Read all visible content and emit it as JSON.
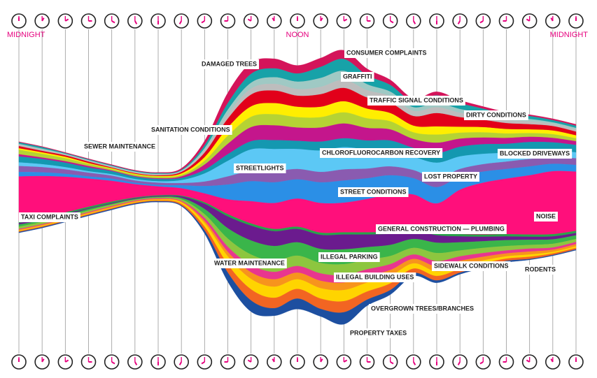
{
  "chart_data": {
    "type": "streamgraph",
    "categories": [
      "MIDNIGHT",
      null,
      null,
      null,
      null,
      null,
      null,
      null,
      null,
      null,
      null,
      null,
      "NOON",
      null,
      null,
      null,
      null,
      null,
      null,
      null,
      null,
      null,
      null,
      null,
      "MIDNIGHT"
    ],
    "series": [
      {
        "name": "DAMAGED TREES",
        "color": "#d4145a",
        "values": [
          1,
          1,
          1,
          1,
          1,
          1,
          1,
          2,
          6,
          14,
          15,
          13,
          11,
          12,
          12,
          9,
          7,
          5,
          5,
          4,
          3,
          3,
          2,
          2,
          2
        ]
      },
      {
        "name": "CONSUMER COMPLAINTS",
        "color": "#17a2a8",
        "values": [
          2,
          2,
          1,
          1,
          1,
          1,
          1,
          1,
          4,
          9,
          12,
          12,
          11,
          15,
          16,
          12,
          9,
          7,
          10,
          8,
          6,
          5,
          4,
          3,
          3
        ]
      },
      {
        "name": "GRAFFITI",
        "color": "#9fc9c4",
        "values": [
          1,
          1,
          1,
          1,
          1,
          1,
          1,
          1,
          3,
          6,
          8,
          9,
          10,
          12,
          12,
          8,
          6,
          5,
          6,
          5,
          4,
          3,
          3,
          2,
          2
        ]
      },
      {
        "name": "TRAFFIC SIGNAL CONDITIONS",
        "color": "#bdbdbd",
        "values": [
          2,
          2,
          1,
          1,
          1,
          1,
          1,
          1,
          3,
          6,
          8,
          9,
          9,
          10,
          11,
          10,
          9,
          7,
          8,
          6,
          5,
          4,
          4,
          3,
          3
        ]
      },
      {
        "name": "DIRTY CONDITIONS",
        "color": "#e2001a",
        "values": [
          3,
          2,
          2,
          2,
          1,
          1,
          1,
          2,
          6,
          12,
          16,
          17,
          15,
          17,
          18,
          15,
          14,
          13,
          18,
          13,
          10,
          8,
          7,
          6,
          5
        ]
      },
      {
        "name": "SANITATION CONDITIONS",
        "color": "#ffee00",
        "values": [
          2,
          2,
          2,
          1,
          1,
          1,
          1,
          2,
          5,
          11,
          14,
          15,
          14,
          14,
          15,
          13,
          11,
          9,
          11,
          8,
          7,
          6,
          5,
          5,
          4
        ]
      },
      {
        "name": "SEWER MAINTENANCE",
        "color": "#b5d334",
        "values": [
          6,
          5,
          4,
          3,
          2,
          2,
          2,
          2,
          5,
          11,
          14,
          15,
          14,
          14,
          15,
          13,
          11,
          9,
          11,
          8,
          7,
          6,
          5,
          5,
          4
        ]
      },
      {
        "name": "CHLOROFLUOROCARBON RECOVERY",
        "color": "#c4168c",
        "values": [
          3,
          2,
          2,
          2,
          1,
          1,
          1,
          2,
          7,
          14,
          19,
          20,
          18,
          19,
          20,
          17,
          15,
          12,
          14,
          11,
          9,
          8,
          7,
          6,
          5
        ]
      },
      {
        "name": "BLOCKED DRIVEWAYS",
        "color": "#1498b0",
        "values": [
          8,
          7,
          6,
          5,
          4,
          3,
          3,
          3,
          5,
          9,
          11,
          12,
          11,
          12,
          12,
          12,
          12,
          12,
          13,
          13,
          13,
          12,
          12,
          11,
          10
        ]
      },
      {
        "name": "STREETLIGHTS",
        "color": "#5cc8f5",
        "values": [
          5,
          4,
          3,
          2,
          2,
          2,
          2,
          4,
          11,
          21,
          29,
          30,
          27,
          29,
          30,
          26,
          23,
          18,
          21,
          17,
          14,
          12,
          11,
          9,
          8
        ]
      },
      {
        "name": "LOST PROPERTY",
        "color": "#8a5bb0",
        "values": [
          8,
          7,
          6,
          5,
          4,
          3,
          3,
          3,
          6,
          11,
          14,
          15,
          14,
          14,
          15,
          13,
          12,
          11,
          12,
          10,
          10,
          10,
          10,
          9,
          9
        ]
      },
      {
        "name": "STREET CONDITIONS",
        "color": "#2b8fe6",
        "values": [
          6,
          5,
          4,
          3,
          3,
          2,
          2,
          4,
          10,
          20,
          27,
          28,
          26,
          28,
          30,
          28,
          26,
          22,
          22,
          18,
          15,
          13,
          12,
          10,
          9
        ]
      },
      {
        "name": "NOISE",
        "color": "#ff0f7b",
        "values": [
          60,
          55,
          48,
          38,
          28,
          18,
          12,
          10,
          12,
          20,
          30,
          35,
          38,
          40,
          40,
          45,
          50,
          45,
          40,
          60,
          70,
          75,
          80,
          85,
          80
        ]
      },
      {
        "name": "TAXI COMPLAINTS",
        "color": "#29a34a",
        "values": [
          3,
          3,
          2,
          2,
          2,
          1,
          1,
          1,
          2,
          3,
          3,
          3,
          3,
          3,
          3,
          3,
          3,
          3,
          3,
          3,
          3,
          3,
          3,
          3,
          3
        ]
      },
      {
        "name": "GENERAL CONSTRUCTION — PLUMBING",
        "color": "#6b1b8e",
        "values": [
          2,
          2,
          2,
          1,
          1,
          1,
          1,
          2,
          7,
          16,
          20,
          20,
          18,
          19,
          20,
          17,
          15,
          12,
          10,
          8,
          6,
          5,
          4,
          4,
          3
        ]
      },
      {
        "name": "WATER MAINTENANCE",
        "color": "#3ab54a",
        "values": [
          3,
          2,
          2,
          2,
          1,
          1,
          1,
          2,
          7,
          14,
          19,
          20,
          18,
          19,
          20,
          17,
          15,
          12,
          14,
          11,
          9,
          8,
          7,
          6,
          5
        ]
      },
      {
        "name": "ILLEGAL PARKING",
        "color": "#8dc63f",
        "values": [
          3,
          3,
          2,
          2,
          2,
          1,
          1,
          2,
          5,
          11,
          14,
          15,
          14,
          14,
          15,
          13,
          11,
          9,
          11,
          8,
          7,
          6,
          5,
          5,
          4
        ]
      },
      {
        "name": "SIDEWALK CONDITIONS",
        "color": "#e8368f",
        "values": [
          1,
          1,
          1,
          1,
          1,
          1,
          1,
          1,
          4,
          7,
          10,
          10,
          9,
          10,
          10,
          9,
          8,
          6,
          7,
          6,
          5,
          4,
          4,
          3,
          3
        ]
      },
      {
        "name": "RODENTS",
        "color": "#f7941d",
        "values": [
          1,
          1,
          1,
          1,
          1,
          1,
          1,
          1,
          3,
          6,
          9,
          10,
          9,
          10,
          10,
          9,
          8,
          6,
          7,
          6,
          5,
          4,
          4,
          3,
          3
        ]
      },
      {
        "name": "ILLEGAL BUILDING USES",
        "color": "#ffd400",
        "values": [
          1,
          1,
          1,
          1,
          1,
          1,
          1,
          2,
          5,
          11,
          14,
          15,
          13,
          14,
          15,
          12,
          10,
          7,
          6,
          5,
          4,
          3,
          3,
          2,
          2
        ]
      },
      {
        "name": "OVERGROWN TREES/BRANCHES",
        "color": "#f26522",
        "values": [
          1,
          1,
          1,
          1,
          1,
          1,
          1,
          2,
          5,
          11,
          15,
          14,
          13,
          14,
          15,
          11,
          9,
          6,
          6,
          5,
          4,
          3,
          3,
          2,
          2
        ]
      },
      {
        "name": "PROPERTY TAXES",
        "color": "#1d4fa0",
        "values": [
          1,
          1,
          1,
          1,
          1,
          1,
          1,
          1,
          4,
          12,
          15,
          10,
          14,
          10,
          16,
          8,
          6,
          4,
          3,
          2,
          2,
          2,
          1,
          1,
          1
        ]
      }
    ]
  }
}
